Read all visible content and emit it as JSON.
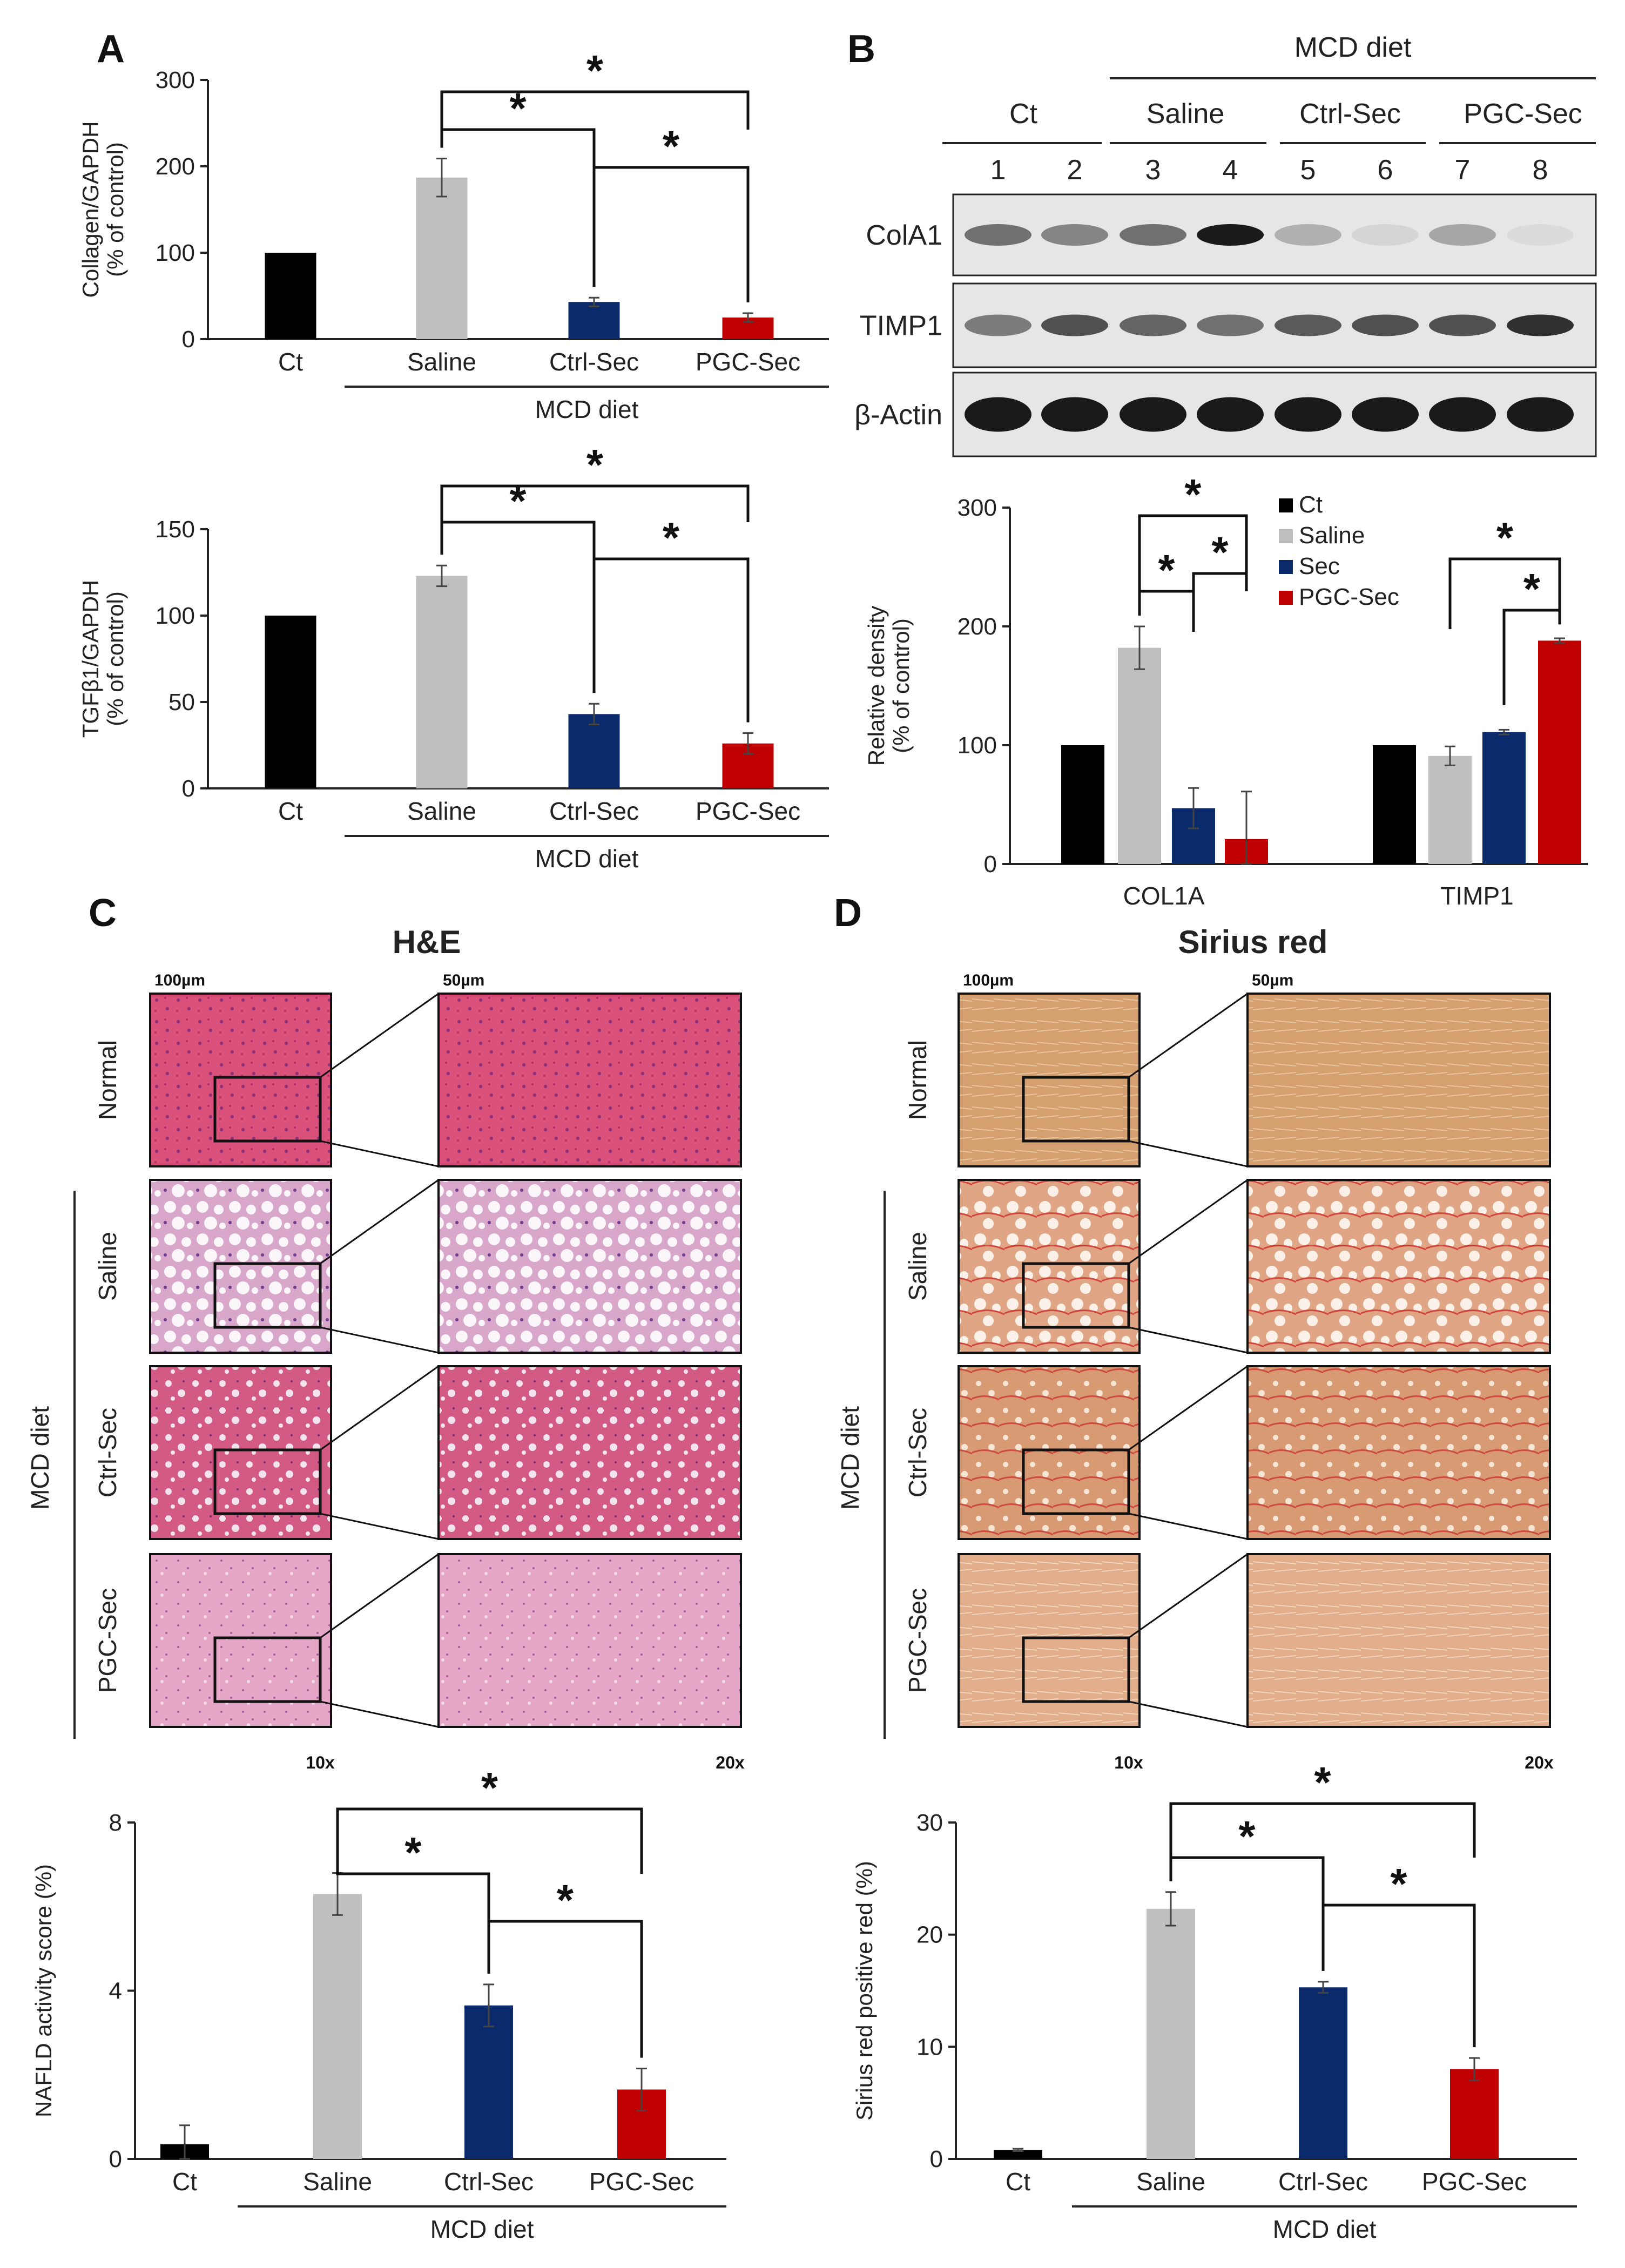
{
  "panels": {
    "A": "A",
    "B": "B",
    "C": "C",
    "D": "D"
  },
  "colors": {
    "ct": "#000000",
    "saline": "#bfbfbf",
    "sec": "#0b2a6b",
    "pgc": "#c00000",
    "he_normal": "#d9507a",
    "he_light": "#ecc3d8",
    "sr_base": "#d39a6a",
    "sr_red": "#d85a50"
  },
  "text": {
    "mcd_diet": "MCD diet",
    "star": "*",
    "he_title": "H&E",
    "sr_title": "Sirius red",
    "scale_10x": "100µm",
    "scale_20x": "50µm",
    "mag_10x": "10x",
    "mag_20x": "20x",
    "groups": [
      "Normal",
      "Saline",
      "Ctrl-Sec",
      "PGC-Sec"
    ]
  },
  "blot": {
    "header_groups": [
      "Ct",
      "Saline",
      "Ctrl-Sec",
      "PGC-Sec"
    ],
    "lanes": [
      "1",
      "2",
      "3",
      "4",
      "5",
      "6",
      "7",
      "8"
    ],
    "proteins": [
      "ColA1",
      "TIMP1",
      "β-Actin"
    ],
    "band_intensity": [
      [
        0.55,
        0.45,
        0.55,
        0.95,
        0.25,
        0.08,
        0.3,
        0.05
      ],
      [
        0.5,
        0.7,
        0.6,
        0.55,
        0.65,
        0.7,
        0.7,
        0.85
      ],
      [
        0.95,
        0.95,
        0.95,
        0.95,
        0.95,
        0.95,
        0.95,
        0.95
      ]
    ]
  },
  "chart_data": [
    {
      "type": "bar",
      "panel": "A-top",
      "categories": [
        "Ct",
        "Saline",
        "Ctrl-Sec",
        "PGC-Sec"
      ],
      "values": [
        100,
        187,
        43,
        25
      ],
      "errors": [
        0,
        22,
        5,
        5
      ],
      "ylabel": "Collagen/GAPDH\n(% of control)",
      "ylim": [
        0,
        300
      ],
      "yticks": [
        "0",
        "100",
        "200",
        "300"
      ],
      "group_label": "MCD diet"
    },
    {
      "type": "bar",
      "panel": "A-bottom",
      "categories": [
        "Ct",
        "Saline",
        "Ctrl-Sec",
        "PGC-Sec"
      ],
      "values": [
        100,
        123,
        43,
        26
      ],
      "errors": [
        0,
        6,
        6,
        6
      ],
      "ylabel": "TGFβ1/GAPDH\n(% of control)",
      "ylim": [
        0,
        150
      ],
      "yticks": [
        "0",
        "50",
        "100",
        "150"
      ],
      "group_label": "MCD diet"
    },
    {
      "type": "bar",
      "panel": "B",
      "categories": [
        "COL1A",
        "TIMP1"
      ],
      "series": [
        {
          "name": "Ct",
          "values": [
            100,
            100
          ],
          "errors": [
            0,
            0
          ]
        },
        {
          "name": "Saline",
          "values": [
            182,
            91
          ],
          "errors": [
            18,
            8
          ]
        },
        {
          "name": "Sec",
          "values": [
            47,
            111
          ],
          "errors": [
            17,
            2
          ]
        },
        {
          "name": "PGC-Sec",
          "values": [
            21,
            188
          ],
          "errors": [
            40,
            2
          ]
        }
      ],
      "ylabel": "Relative density\n(% of control)",
      "ylim": [
        0,
        300
      ],
      "yticks": [
        "0",
        "100",
        "200",
        "300"
      ],
      "legend": "top-right"
    },
    {
      "type": "bar",
      "panel": "C-bottom",
      "categories": [
        "Ct",
        "Saline",
        "Ctrl-Sec",
        "PGC-Sec"
      ],
      "values": [
        0.35,
        6.3,
        3.65,
        1.65
      ],
      "errors": [
        0.45,
        0.5,
        0.5,
        0.5
      ],
      "ylabel": "NAFLD activity score (%)",
      "ylim": [
        0,
        8
      ],
      "yticks": [
        "0",
        "4",
        "8"
      ],
      "group_label": "MCD diet"
    },
    {
      "type": "bar",
      "panel": "D-bottom",
      "categories": [
        "Ct",
        "Saline",
        "Ctrl-Sec",
        "PGC-Sec"
      ],
      "values": [
        0.8,
        22.3,
        15.3,
        8.0
      ],
      "errors": [
        0.1,
        1.5,
        0.5,
        1.0
      ],
      "ylabel": "Sirius red positive red (%)",
      "ylim": [
        0,
        30
      ],
      "yticks": [
        "0",
        "10",
        "20",
        "30"
      ],
      "group_label": "MCD diet"
    }
  ]
}
